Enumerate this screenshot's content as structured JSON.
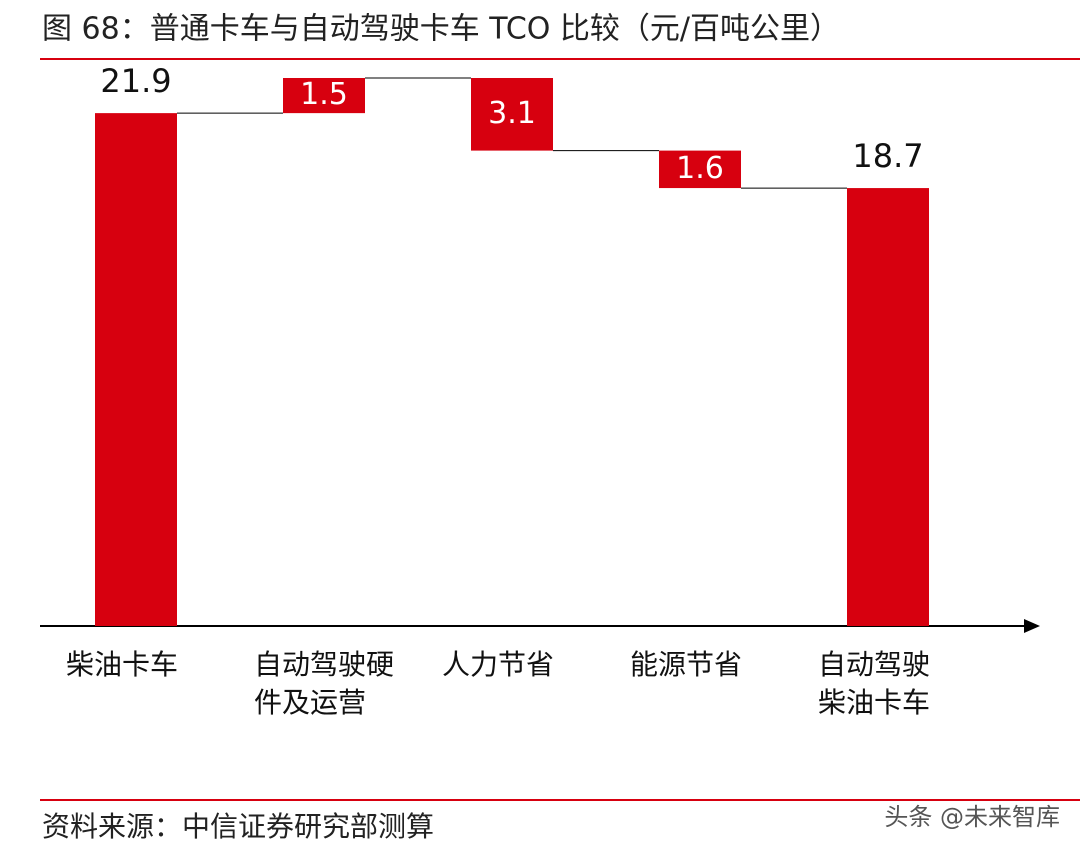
{
  "chart_data": {
    "type": "waterfall",
    "title": "图 68：普通卡车与自动驾驶卡车 TCO 比较（元/百吨公里）",
    "categories": [
      "柴油卡车",
      "自动驾驶硬件及运营",
      "人力节省",
      "能源节省",
      "自动驾驶柴油卡车"
    ],
    "values": [
      21.9,
      1.5,
      3.1,
      1.6,
      18.7
    ],
    "measure": [
      "total",
      "increase",
      "decrease",
      "decrease",
      "total"
    ],
    "color": "#d7000f",
    "source": "资料来源：中信证券研究部测算",
    "watermark": "头条 @未来智库"
  }
}
